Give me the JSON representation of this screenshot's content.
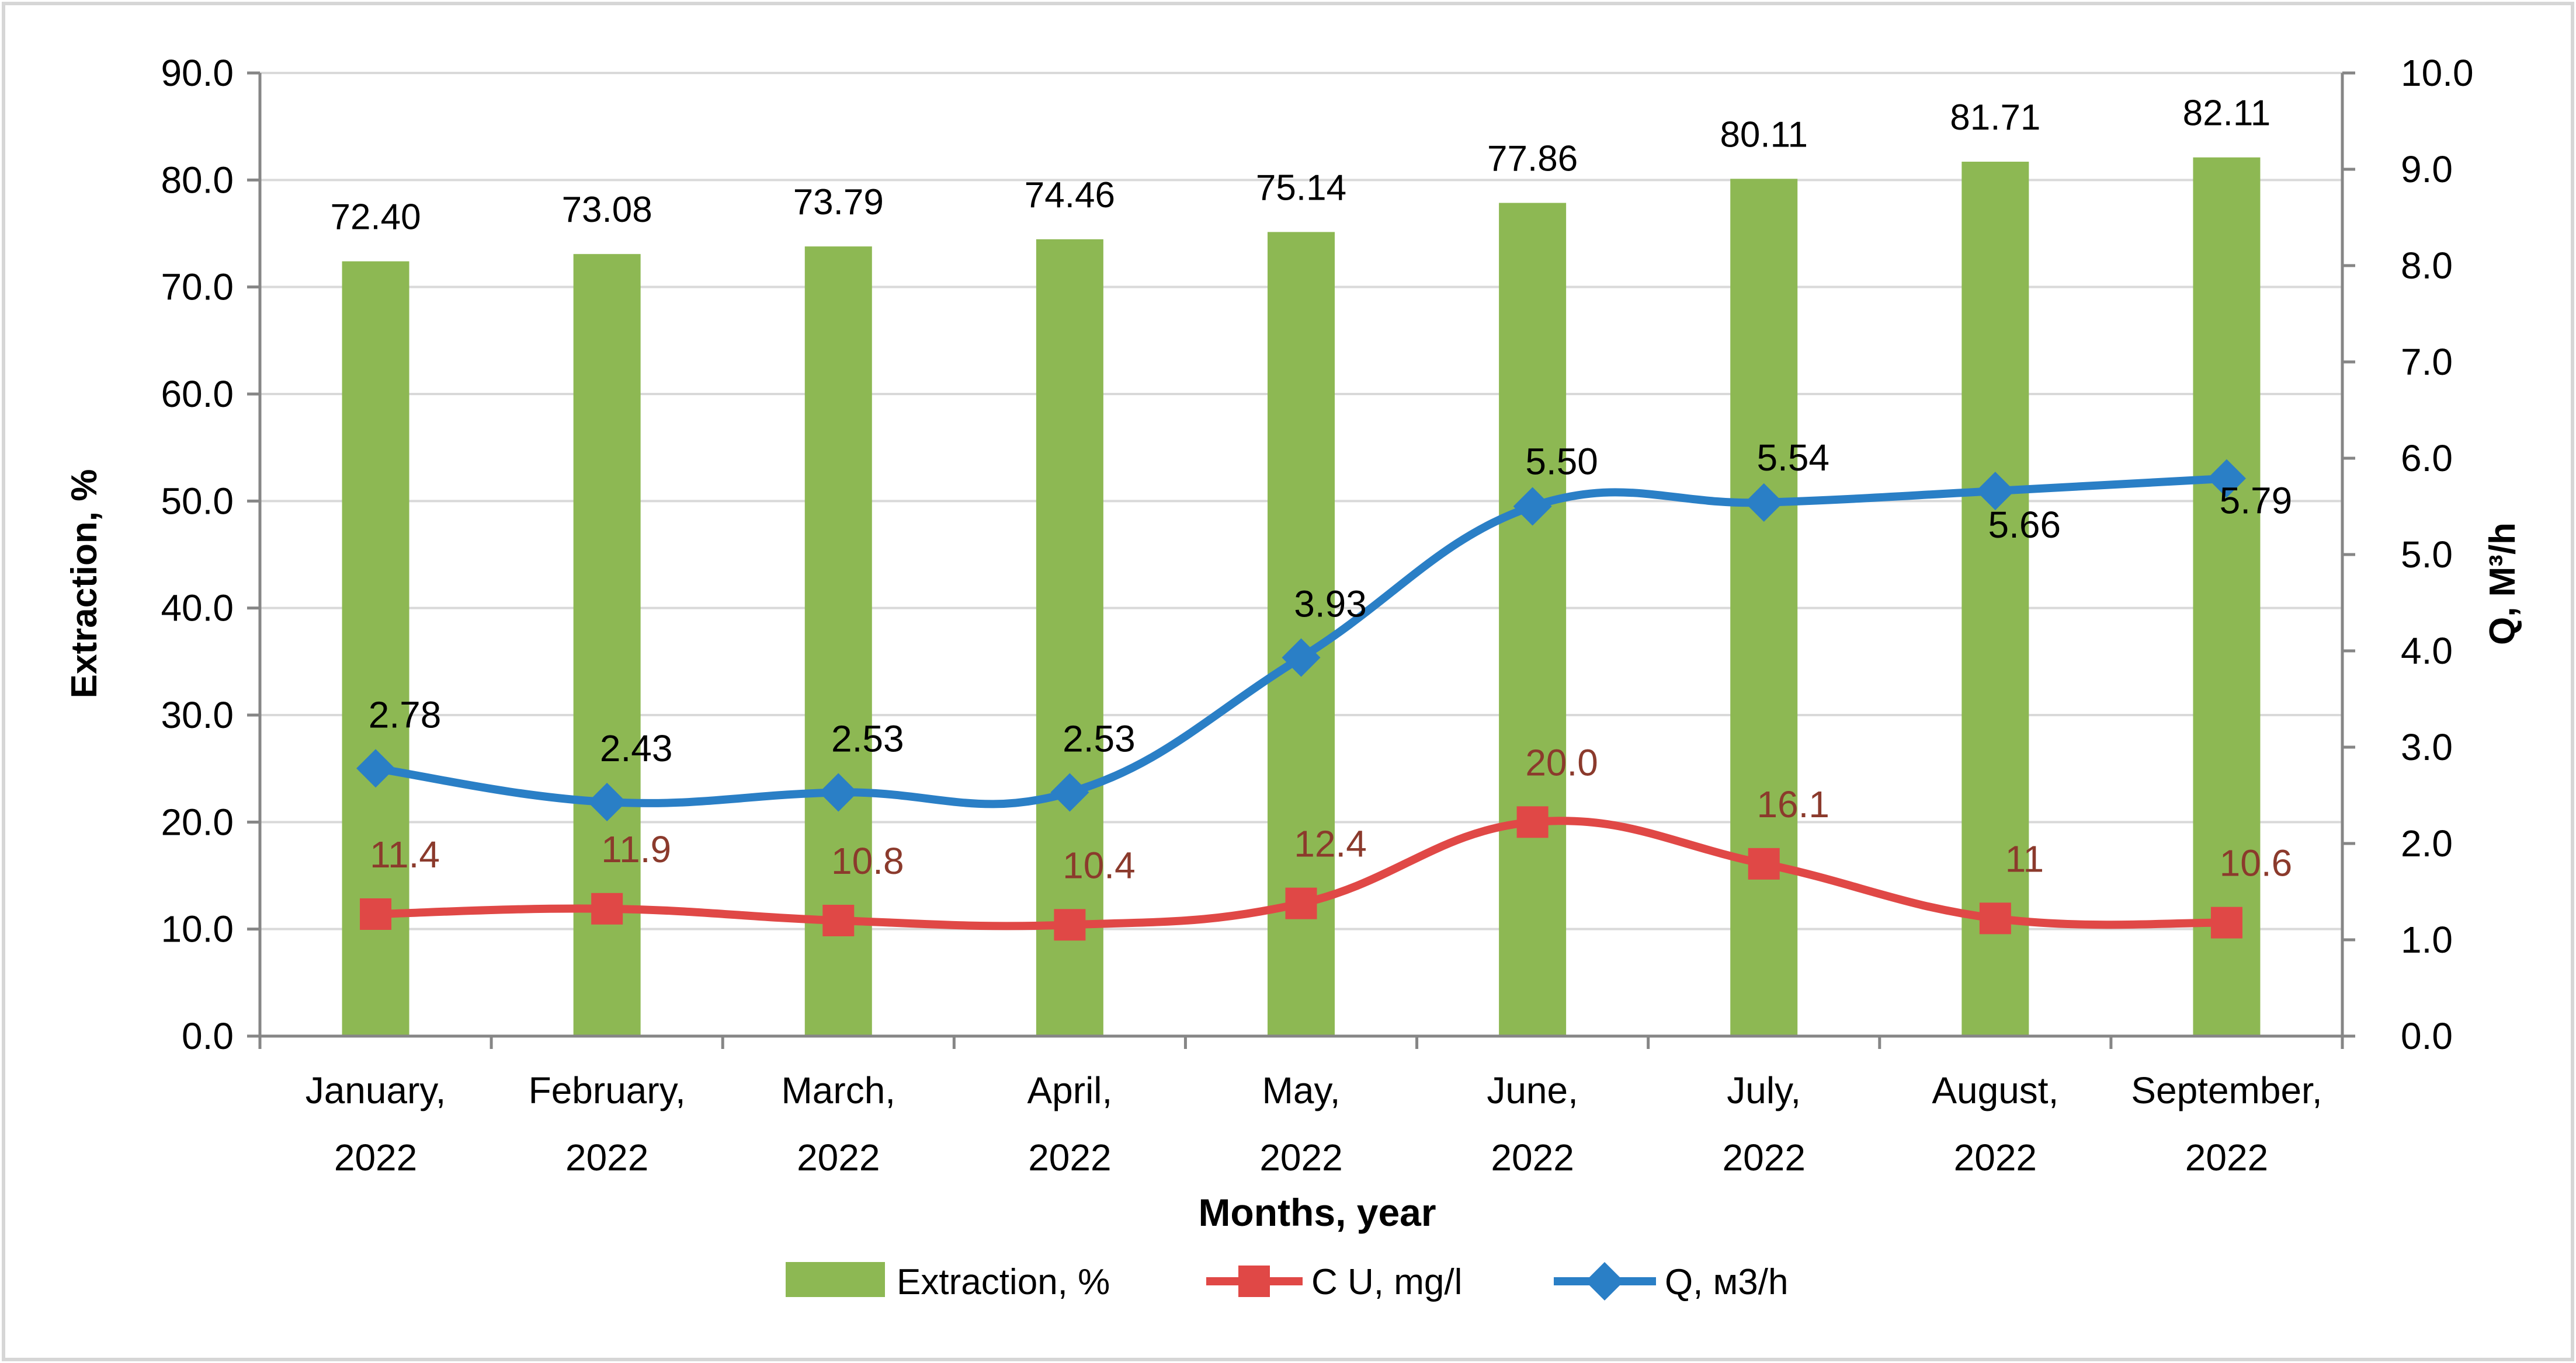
{
  "chart_data": {
    "type": "bar-line-combo",
    "title": "",
    "xlabel": "Months, year",
    "ylabel_left": "Extraction, %",
    "ylabel_right": "Q, M³/h",
    "ylim_left": [
      0,
      90
    ],
    "ylim_right": [
      0,
      10
    ],
    "yticks_left": [
      "0.0",
      "10.0",
      "20.0",
      "30.0",
      "40.0",
      "50.0",
      "60.0",
      "70.0",
      "80.0",
      "90.0"
    ],
    "yticks_right": [
      "0.0",
      "1.0",
      "2.0",
      "3.0",
      "4.0",
      "5.0",
      "6.0",
      "7.0",
      "8.0",
      "9.0",
      "10.0"
    ],
    "categories": [
      [
        "January,",
        "2022"
      ],
      [
        "February,",
        "2022"
      ],
      [
        "March,",
        "2022"
      ],
      [
        "April,",
        "2022"
      ],
      [
        "May,",
        "2022"
      ],
      [
        "June,",
        "2022"
      ],
      [
        "July,",
        "2022"
      ],
      [
        "August,",
        "2022"
      ],
      [
        "September,",
        "2022"
      ]
    ],
    "series": [
      {
        "name": "Extraction, %",
        "kind": "bar",
        "axis": "left",
        "color": "#8db853",
        "values": [
          72.4,
          73.08,
          73.79,
          74.46,
          75.14,
          77.86,
          80.11,
          81.71,
          82.11
        ],
        "labels": [
          "72.40",
          "73.08",
          "73.79",
          "74.46",
          "75.14",
          "77.86",
          "80.11",
          "81.71",
          "82.11"
        ]
      },
      {
        "name": "C U, mg/l",
        "kind": "line",
        "marker": "square",
        "axis": "left",
        "color": "#e04846",
        "label_color": "#8b3a2c",
        "values": [
          11.4,
          11.9,
          10.8,
          10.4,
          12.4,
          20.0,
          16.1,
          11,
          10.6
        ],
        "labels": [
          "11.4",
          "11.9",
          "10.8",
          "10.4",
          "12.4",
          "20.0",
          "16.1",
          "11",
          "10.6"
        ]
      },
      {
        "name": "Q, м3/h",
        "kind": "line",
        "marker": "diamond",
        "axis": "right",
        "color": "#2a7fc6",
        "values": [
          2.78,
          2.43,
          2.53,
          2.53,
          3.93,
          5.5,
          5.54,
          5.66,
          5.79
        ],
        "labels": [
          "2.78",
          "2.43",
          "2.53",
          "2.53",
          "3.93",
          "5.50",
          "5.54",
          "5.66",
          "5.79"
        ]
      }
    ],
    "legend": {
      "placement": "bottom-center"
    }
  }
}
